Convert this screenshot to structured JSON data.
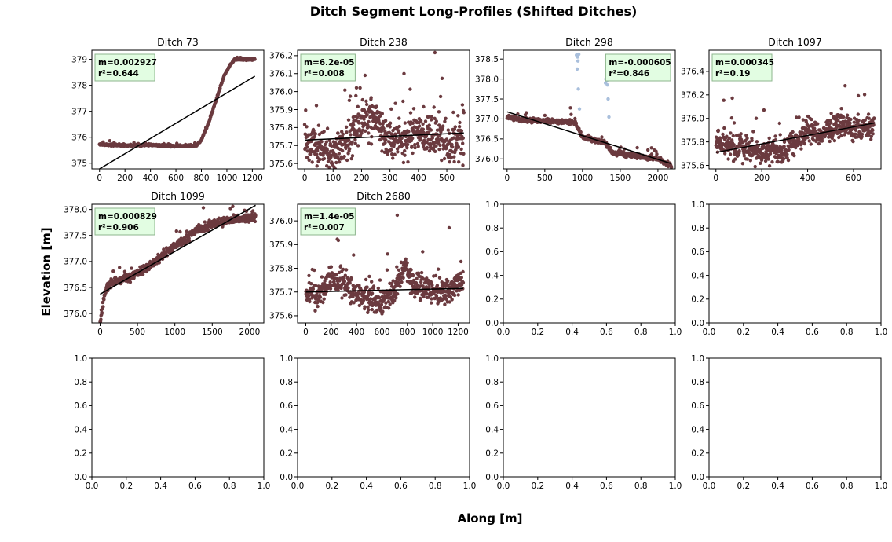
{
  "figure": {
    "title": "Ditch Segment Long-Profiles (Shifted Ditches)",
    "xlabel": "Along [m]",
    "ylabel": "Elevation [m]",
    "colors": {
      "points": "#6b3a3f",
      "outliers": "#a9bfdc",
      "fit": "#000000",
      "box_fill": "#e2fde2",
      "box_edge": "#8db58d"
    }
  },
  "chart_data": [
    {
      "type": "scatter",
      "title": "Ditch 73",
      "xlim": [
        -60,
        1290
      ],
      "ylim": [
        374.78,
        379.35
      ],
      "xticks": [
        0,
        200,
        400,
        600,
        800,
        1000,
        1200
      ],
      "yticks": [
        375,
        376,
        377,
        378,
        379
      ],
      "x_range": [
        0,
        1220
      ],
      "profile": [
        [
          0,
          375.72
        ],
        [
          200,
          375.68
        ],
        [
          400,
          375.7
        ],
        [
          600,
          375.66
        ],
        [
          760,
          375.68
        ],
        [
          800,
          375.9
        ],
        [
          860,
          376.6
        ],
        [
          920,
          377.5
        ],
        [
          980,
          378.4
        ],
        [
          1030,
          378.8
        ],
        [
          1060,
          379.0
        ],
        [
          1220,
          379.0
        ]
      ],
      "noise": 0.03,
      "fit_line": [
        [
          0,
          374.78
        ],
        [
          1220,
          378.35
        ]
      ],
      "annotation": {
        "m": "m=0.002927",
        "r2": "r²=0.644",
        "position": "top-left"
      }
    },
    {
      "type": "scatter",
      "title": "Ditch 238",
      "xlim": [
        -25,
        580
      ],
      "ylim": [
        375.57,
        376.23
      ],
      "xticks": [
        0,
        100,
        200,
        300,
        400,
        500
      ],
      "yticks": [
        375.6,
        375.7,
        375.8,
        375.9,
        376.0,
        376.1,
        376.2
      ],
      "x_range": [
        0,
        560
      ],
      "profile": [
        [
          0,
          375.75
        ],
        [
          50,
          375.66
        ],
        [
          100,
          375.65
        ],
        [
          150,
          375.72
        ],
        [
          200,
          375.85
        ],
        [
          250,
          375.85
        ],
        [
          300,
          375.72
        ],
        [
          350,
          375.72
        ],
        [
          400,
          375.8
        ],
        [
          450,
          375.73
        ],
        [
          500,
          375.7
        ],
        [
          560,
          375.73
        ]
      ],
      "noise": 0.1,
      "fit_line": [
        [
          0,
          375.73
        ],
        [
          560,
          375.77
        ]
      ],
      "annotation": {
        "m": "m=6.2e-05",
        "r2": "r²=0.008",
        "position": "top-left"
      }
    },
    {
      "type": "scatter",
      "title": "Ditch 298",
      "xlim": [
        -50,
        2230
      ],
      "ylim": [
        375.75,
        378.72
      ],
      "xticks": [
        0,
        500,
        1000,
        1500,
        2000
      ],
      "yticks": [
        376.0,
        376.5,
        377.0,
        377.5,
        378.0,
        378.5
      ],
      "x_range": [
        0,
        2180
      ],
      "profile": [
        [
          0,
          377.05
        ],
        [
          200,
          376.98
        ],
        [
          500,
          376.95
        ],
        [
          900,
          376.92
        ],
        [
          1000,
          376.55
        ],
        [
          1100,
          376.5
        ],
        [
          1300,
          376.4
        ],
        [
          1400,
          376.15
        ],
        [
          1600,
          376.1
        ],
        [
          2000,
          376.0
        ],
        [
          2180,
          375.83
        ]
      ],
      "noise": 0.05,
      "fit_line": [
        [
          0,
          377.18
        ],
        [
          2180,
          375.88
        ]
      ],
      "outliers": [
        [
          920,
          378.6
        ],
        [
          935,
          378.55
        ],
        [
          950,
          378.62
        ],
        [
          940,
          378.45
        ],
        [
          930,
          378.25
        ],
        [
          945,
          377.75
        ],
        [
          960,
          377.25
        ],
        [
          1310,
          378.0
        ],
        [
          1320,
          377.95
        ],
        [
          1330,
          377.85
        ],
        [
          1340,
          377.5
        ],
        [
          1350,
          377.05
        ],
        [
          1305,
          377.9
        ]
      ],
      "annotation": {
        "m": "m=-0.000605",
        "r2": "r²=0.846",
        "position": "top-right"
      }
    },
    {
      "type": "scatter",
      "title": "Ditch 1097",
      "xlim": [
        -30,
        720
      ],
      "ylim": [
        375.57,
        376.58
      ],
      "xticks": [
        0,
        200,
        400,
        600
      ],
      "yticks": [
        375.6,
        375.8,
        376.0,
        376.2,
        376.4
      ],
      "x_range": [
        0,
        690
      ],
      "profile": [
        [
          0,
          375.8
        ],
        [
          100,
          375.75
        ],
        [
          200,
          375.7
        ],
        [
          300,
          375.72
        ],
        [
          350,
          375.8
        ],
        [
          400,
          375.9
        ],
        [
          450,
          375.85
        ],
        [
          500,
          375.9
        ],
        [
          550,
          375.95
        ],
        [
          600,
          375.9
        ],
        [
          690,
          375.95
        ]
      ],
      "noise": 0.09,
      "fit_line": [
        [
          0,
          375.71
        ],
        [
          690,
          375.96
        ]
      ],
      "annotation": {
        "m": "m=0.000345",
        "r2": "r²=0.19",
        "position": "top-left"
      }
    },
    {
      "type": "scatter",
      "title": "Ditch 1099",
      "xlim": [
        -110,
        2190
      ],
      "ylim": [
        375.82,
        378.1
      ],
      "xticks": [
        0,
        500,
        1000,
        1500,
        2000
      ],
      "yticks": [
        376.0,
        376.5,
        377.0,
        377.5,
        378.0
      ],
      "x_range": [
        0,
        2080
      ],
      "profile": [
        [
          0,
          375.8
        ],
        [
          50,
          376.3
        ],
        [
          100,
          376.55
        ],
        [
          300,
          376.65
        ],
        [
          500,
          376.75
        ],
        [
          700,
          376.95
        ],
        [
          900,
          377.2
        ],
        [
          1100,
          377.4
        ],
        [
          1300,
          377.6
        ],
        [
          1500,
          377.72
        ],
        [
          1700,
          377.78
        ],
        [
          2080,
          377.85
        ]
      ],
      "noise": 0.07,
      "fit_line": [
        [
          0,
          376.37
        ],
        [
          2080,
          378.08
        ]
      ],
      "annotation": {
        "m": "m=0.000829",
        "r2": "r²=0.906",
        "position": "top-left"
      }
    },
    {
      "type": "scatter",
      "title": "Ditch 2680",
      "xlim": [
        -65,
        1290
      ],
      "ylim": [
        375.57,
        376.07
      ],
      "xticks": [
        0,
        200,
        400,
        600,
        800,
        1000,
        1200
      ],
      "yticks": [
        375.6,
        375.7,
        375.8,
        375.9,
        376.0
      ],
      "x_range": [
        0,
        1240
      ],
      "profile": [
        [
          0,
          375.7
        ],
        [
          100,
          375.68
        ],
        [
          200,
          375.76
        ],
        [
          300,
          375.74
        ],
        [
          400,
          375.68
        ],
        [
          500,
          375.67
        ],
        [
          600,
          375.66
        ],
        [
          700,
          375.7
        ],
        [
          780,
          375.82
        ],
        [
          850,
          375.72
        ],
        [
          1000,
          375.7
        ],
        [
          1100,
          375.7
        ],
        [
          1240,
          375.75
        ]
      ],
      "noise": 0.05,
      "fit_line": [
        [
          0,
          375.7
        ],
        [
          1240,
          375.715
        ]
      ],
      "annotation": {
        "m": "m=1.4e-05",
        "r2": "r²=0.007",
        "position": "top-left"
      }
    },
    {
      "type": "scatter",
      "title": "",
      "empty": true,
      "xlim": [
        0,
        1
      ],
      "ylim": [
        0,
        1
      ],
      "xticks": [
        0.0,
        0.2,
        0.4,
        0.6,
        0.8,
        1.0
      ],
      "yticks": [
        0.0,
        0.2,
        0.4,
        0.6,
        0.8,
        1.0
      ]
    },
    {
      "type": "scatter",
      "title": "",
      "empty": true,
      "xlim": [
        0,
        1
      ],
      "ylim": [
        0,
        1
      ],
      "xticks": [
        0.0,
        0.2,
        0.4,
        0.6,
        0.8,
        1.0
      ],
      "yticks": [
        0.0,
        0.2,
        0.4,
        0.6,
        0.8,
        1.0
      ]
    },
    {
      "type": "scatter",
      "title": "",
      "empty": true,
      "xlim": [
        0,
        1
      ],
      "ylim": [
        0,
        1
      ],
      "xticks": [
        0.0,
        0.2,
        0.4,
        0.6,
        0.8,
        1.0
      ],
      "yticks": [
        0.0,
        0.2,
        0.4,
        0.6,
        0.8,
        1.0
      ]
    },
    {
      "type": "scatter",
      "title": "",
      "empty": true,
      "xlim": [
        0,
        1
      ],
      "ylim": [
        0,
        1
      ],
      "xticks": [
        0.0,
        0.2,
        0.4,
        0.6,
        0.8,
        1.0
      ],
      "yticks": [
        0.0,
        0.2,
        0.4,
        0.6,
        0.8,
        1.0
      ]
    },
    {
      "type": "scatter",
      "title": "",
      "empty": true,
      "xlim": [
        0,
        1
      ],
      "ylim": [
        0,
        1
      ],
      "xticks": [
        0.0,
        0.2,
        0.4,
        0.6,
        0.8,
        1.0
      ],
      "yticks": [
        0.0,
        0.2,
        0.4,
        0.6,
        0.8,
        1.0
      ]
    },
    {
      "type": "scatter",
      "title": "",
      "empty": true,
      "xlim": [
        0,
        1
      ],
      "ylim": [
        0,
        1
      ],
      "xticks": [
        0.0,
        0.2,
        0.4,
        0.6,
        0.8,
        1.0
      ],
      "yticks": [
        0.0,
        0.2,
        0.4,
        0.6,
        0.8,
        1.0
      ]
    }
  ]
}
